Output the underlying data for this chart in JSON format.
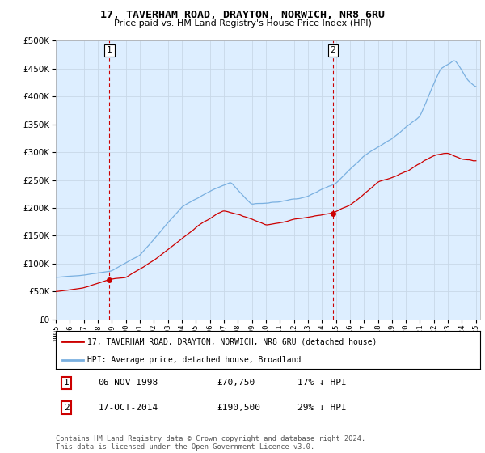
{
  "title": "17, TAVERHAM ROAD, DRAYTON, NORWICH, NR8 6RU",
  "subtitle": "Price paid vs. HM Land Registry's House Price Index (HPI)",
  "legend_line1": "17, TAVERHAM ROAD, DRAYTON, NORWICH, NR8 6RU (detached house)",
  "legend_line2": "HPI: Average price, detached house, Broadland",
  "annotation1_label": "1",
  "annotation1_date": "06-NOV-1998",
  "annotation1_price": "£70,750",
  "annotation1_hpi": "17% ↓ HPI",
  "annotation2_label": "2",
  "annotation2_date": "17-OCT-2014",
  "annotation2_price": "£190,500",
  "annotation2_hpi": "29% ↓ HPI",
  "footer": "Contains HM Land Registry data © Crown copyright and database right 2024.\nThis data is licensed under the Open Government Licence v3.0.",
  "sale1_x": 1998.83,
  "sale1_y": 70750,
  "sale2_x": 2014.78,
  "sale2_y": 190500,
  "ylim": [
    0,
    500000
  ],
  "xlim_start": 1995.0,
  "xlim_end": 2025.3,
  "hpi_color": "#7ab0e0",
  "price_color": "#cc0000",
  "vline_color": "#cc0000",
  "grid_color": "#c8d8e8",
  "chart_bg": "#ddeeff",
  "background_color": "#ffffff"
}
